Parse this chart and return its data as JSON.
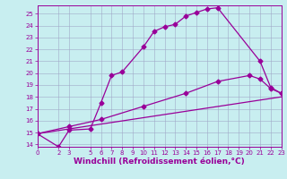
{
  "xlabel": "Windchill (Refroidissement éolien,°C)",
  "background_color": "#c8eef0",
  "line_color": "#990099",
  "grid_color": "#a0a8c8",
  "xlim": [
    0,
    23
  ],
  "ylim": [
    13.8,
    25.7
  ],
  "xticks": [
    0,
    2,
    3,
    5,
    6,
    7,
    8,
    9,
    10,
    11,
    12,
    13,
    14,
    15,
    16,
    17,
    18,
    19,
    20,
    21,
    22,
    23
  ],
  "yticks": [
    14,
    15,
    16,
    17,
    18,
    19,
    20,
    21,
    22,
    23,
    24,
    25
  ],
  "line1_x": [
    0,
    2,
    3,
    5,
    6,
    7,
    8,
    10,
    11,
    12,
    13,
    14,
    15,
    16,
    17,
    21,
    22,
    23
  ],
  "line1_y": [
    14.9,
    13.8,
    15.2,
    15.3,
    17.5,
    19.8,
    20.1,
    22.2,
    23.5,
    23.9,
    24.1,
    24.8,
    25.1,
    25.4,
    25.5,
    21.0,
    18.8,
    18.3
  ],
  "line2_x": [
    0,
    3,
    6,
    10,
    14,
    17,
    20,
    21,
    22,
    23
  ],
  "line2_y": [
    14.9,
    15.5,
    16.1,
    17.2,
    18.3,
    19.3,
    19.8,
    19.5,
    18.7,
    18.3
  ],
  "line3_x": [
    0,
    23
  ],
  "line3_y": [
    14.9,
    18.0
  ],
  "marker": "D",
  "markersize": 2.5,
  "linewidth": 0.9,
  "tick_fontsize": 5,
  "xlabel_fontsize": 6.5
}
